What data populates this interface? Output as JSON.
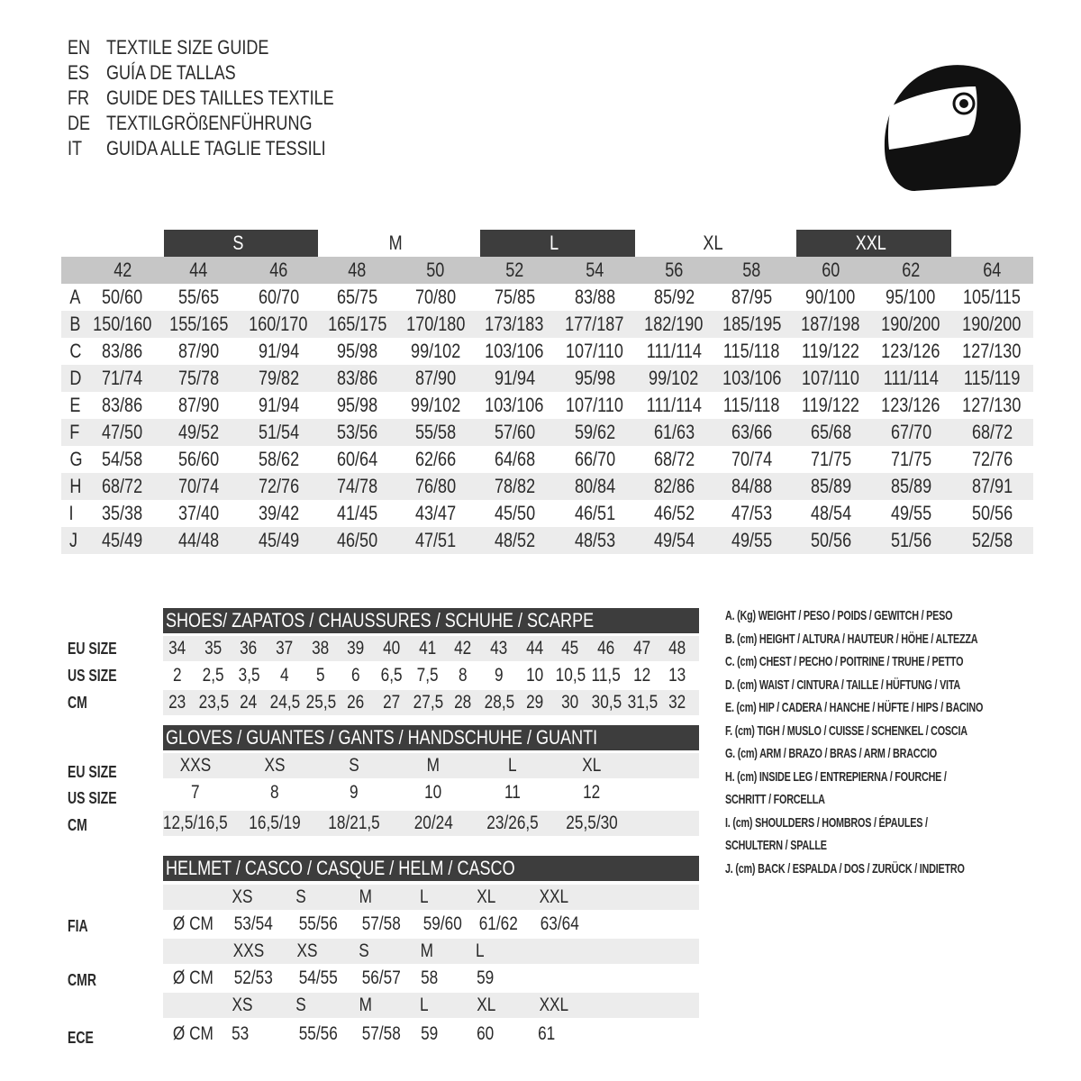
{
  "titles": [
    {
      "code": "EN",
      "text": "TEXTILE SIZE GUIDE"
    },
    {
      "code": "ES",
      "text": "GUÍA DE TALLAS"
    },
    {
      "code": "FR",
      "text": "GUIDE DES TAILLES TEXTILE"
    },
    {
      "code": "DE",
      "text": "TEXTILGRÖßENFÜHRUNG"
    },
    {
      "code": "IT",
      "text": "GUIDA ALLE TAGLIE TESSILI"
    }
  ],
  "icon": "helmet-icon",
  "textile": {
    "bands": [
      "S",
      "M",
      "L",
      "XL",
      "XXL"
    ],
    "sizes": [
      "42",
      "44",
      "46",
      "48",
      "50",
      "52",
      "54",
      "56",
      "58",
      "60",
      "62",
      "64"
    ],
    "rows": [
      {
        "label": "A",
        "values": [
          "50/60",
          "55/65",
          "60/70",
          "65/75",
          "70/80",
          "75/85",
          "83/88",
          "85/92",
          "87/95",
          "90/100",
          "95/100",
          "105/115"
        ]
      },
      {
        "label": "B",
        "values": [
          "150/160",
          "155/165",
          "160/170",
          "165/175",
          "170/180",
          "173/183",
          "177/187",
          "182/190",
          "185/195",
          "187/198",
          "190/200",
          "190/200"
        ]
      },
      {
        "label": "C",
        "values": [
          "83/86",
          "87/90",
          "91/94",
          "95/98",
          "99/102",
          "103/106",
          "107/110",
          "111/114",
          "115/118",
          "119/122",
          "123/126",
          "127/130"
        ]
      },
      {
        "label": "D",
        "values": [
          "71/74",
          "75/78",
          "79/82",
          "83/86",
          "87/90",
          "91/94",
          "95/98",
          "99/102",
          "103/106",
          "107/110",
          "111/114",
          "115/119"
        ]
      },
      {
        "label": "E",
        "values": [
          "83/86",
          "87/90",
          "91/94",
          "95/98",
          "99/102",
          "103/106",
          "107/110",
          "111/114",
          "115/118",
          "119/122",
          "123/126",
          "127/130"
        ]
      },
      {
        "label": "F",
        "values": [
          "47/50",
          "49/52",
          "51/54",
          "53/56",
          "55/58",
          "57/60",
          "59/62",
          "61/63",
          "63/66",
          "65/68",
          "67/70",
          "68/72"
        ]
      },
      {
        "label": "G",
        "values": [
          "54/58",
          "56/60",
          "58/62",
          "60/64",
          "62/66",
          "64/68",
          "66/70",
          "68/72",
          "70/74",
          "71/75",
          "71/75",
          "72/76"
        ]
      },
      {
        "label": "H",
        "values": [
          "68/72",
          "70/74",
          "72/76",
          "74/78",
          "76/80",
          "78/82",
          "80/84",
          "82/86",
          "84/88",
          "85/89",
          "85/89",
          "87/91"
        ]
      },
      {
        "label": "I",
        "values": [
          "35/38",
          "37/40",
          "39/42",
          "41/45",
          "43/47",
          "45/50",
          "46/51",
          "46/52",
          "47/53",
          "48/54",
          "49/55",
          "50/56"
        ]
      },
      {
        "label": "J",
        "values": [
          "45/49",
          "44/48",
          "45/49",
          "46/50",
          "47/51",
          "48/52",
          "48/53",
          "49/54",
          "49/55",
          "50/56",
          "51/56",
          "52/58"
        ]
      }
    ]
  },
  "shoes": {
    "title": "SHOES/ ZAPATOS / CHAUSSURES / SCHUHE / SCARPE",
    "labels": [
      "EU SIZE",
      "US SIZE",
      "CM"
    ],
    "eu": [
      "34",
      "35",
      "36",
      "37",
      "38",
      "39",
      "40",
      "41",
      "42",
      "43",
      "44",
      "45",
      "46",
      "47",
      "48"
    ],
    "us": [
      "2",
      "2,5",
      "3,5",
      "4",
      "5",
      "6",
      "6,5",
      "7,5",
      "8",
      "9",
      "10",
      "10,5",
      "11,5",
      "12",
      "13"
    ],
    "cm": [
      "23",
      "23,5",
      "24",
      "24,5",
      "25,5",
      "26",
      "27",
      "27,5",
      "28",
      "28,5",
      "29",
      "30",
      "30,5",
      "31,5",
      "32"
    ]
  },
  "gloves": {
    "title": "GLOVES / GUANTES / GANTS / HANDSCHUHE / GUANTI",
    "labels": [
      "EU SIZE",
      "US SIZE",
      "CM"
    ],
    "eu": [
      "XXS",
      "XS",
      "S",
      "M",
      "L",
      "XL"
    ],
    "us": [
      "7",
      "8",
      "9",
      "10",
      "11",
      "12"
    ],
    "cm": [
      "12,5/16,5",
      "16,5/19",
      "18/21,5",
      "20/24",
      "23/26,5",
      "25,5/30"
    ]
  },
  "helmet": {
    "title": "HELMET / CASCO / CASQUE / HELM / CASCO",
    "unit": "Ø CM",
    "standards": [
      {
        "label": "FIA",
        "sizes": [
          "XS",
          "S",
          "M",
          "L",
          "XL",
          "XXL"
        ],
        "values": [
          "53/54",
          "55/56",
          "57/58",
          "59/60",
          "61/62",
          "63/64"
        ]
      },
      {
        "label": "CMR",
        "sizes": [
          "XXS",
          "XS",
          "S",
          "M",
          "L"
        ],
        "values": [
          "52/53",
          "54/55",
          "56/57",
          "58",
          "59"
        ]
      },
      {
        "label": "ECE",
        "sizes": [
          "XS",
          "S",
          "M",
          "L",
          "XL",
          "XXL"
        ],
        "values": [
          "53",
          "55/56",
          "57/58",
          "59",
          "60",
          "61"
        ]
      }
    ]
  },
  "legend": [
    "A. (Kg) WEIGHT / PESO / POIDS / GEWITCH / PESO",
    "B. (cm) HEIGHT / ALTURA / HAUTEUR / HÖHE / ALTEZZA",
    "C. (cm) CHEST / PECHO / POITRINE / TRUHE / PETTO",
    "D. (cm) WAIST / CINTURA / TAILLE / HÜFTUNG / VITA",
    "E. (cm) HIP / CADERA / HANCHE / HÜFTE / HIPS /  BACINO",
    "F.  (cm) TIGH / MUSLO / CUISSE / SCHENKEL / COSCIA",
    "G. (cm) ARM  / BRAZO / BRAS / ARM / BRACCIO",
    "H. (cm) INSIDE LEG / ENTREPIERNA / FOURCHE /",
    "SCHRITT / FORCELLA",
    "I.  (cm) SHOULDERS / HOMBROS / ÉPAULES /",
    "SCHULTERN / SPALLE",
    "J. (cm) BACK / ESPALDA / DOS / ZURÜCK / INDIETRO"
  ]
}
